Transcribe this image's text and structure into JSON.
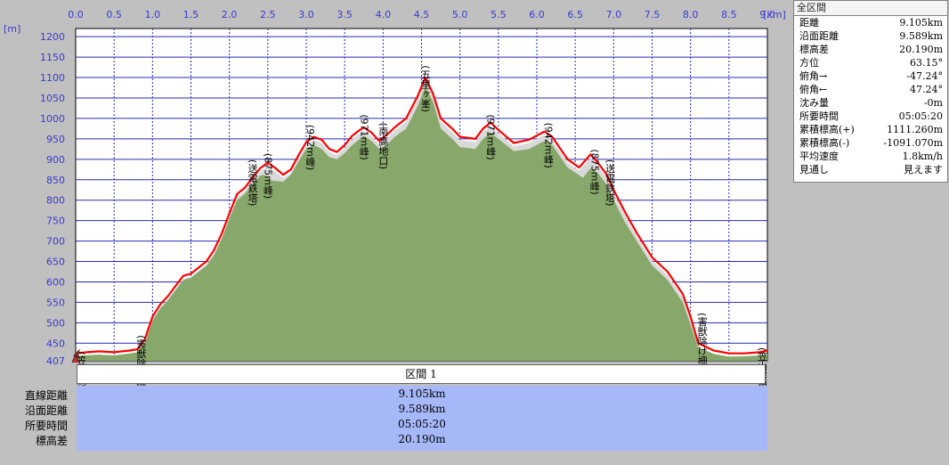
{
  "chart_data": {
    "type": "area",
    "x_unit": "[km]",
    "y_unit": "[m]",
    "xlim": [
      0,
      9.0
    ],
    "ylim": [
      407,
      1220
    ],
    "x_ticks": [
      "0.0",
      "0.5",
      "1.0",
      "1.5",
      "2.0",
      "2.5",
      "3.0",
      "3.5",
      "4.0",
      "4.5",
      "5.0",
      "5.5",
      "6.0",
      "6.5",
      "7.0",
      "7.5",
      "8.0",
      "8.5",
      "9.0"
    ],
    "y_ticks": [
      "1200",
      "1150",
      "1100",
      "1050",
      "1000",
      "950",
      "900",
      "850",
      "800",
      "750",
      "700",
      "650",
      "600",
      "550",
      "500",
      "450",
      "407"
    ],
    "grid": true,
    "profile": [
      [
        0.0,
        418
      ],
      [
        0.1,
        420
      ],
      [
        0.3,
        422
      ],
      [
        0.5,
        420
      ],
      [
        0.7,
        425
      ],
      [
        0.8,
        428
      ],
      [
        0.9,
        450
      ],
      [
        1.0,
        505
      ],
      [
        1.1,
        535
      ],
      [
        1.2,
        555
      ],
      [
        1.3,
        580
      ],
      [
        1.4,
        605
      ],
      [
        1.5,
        610
      ],
      [
        1.6,
        625
      ],
      [
        1.7,
        640
      ],
      [
        1.8,
        665
      ],
      [
        1.9,
        705
      ],
      [
        2.0,
        755
      ],
      [
        2.1,
        800
      ],
      [
        2.2,
        815
      ],
      [
        2.3,
        840
      ],
      [
        2.4,
        860
      ],
      [
        2.45,
        862
      ],
      [
        2.55,
        848
      ],
      [
        2.7,
        845
      ],
      [
        2.8,
        862
      ],
      [
        2.9,
        895
      ],
      [
        3.0,
        925
      ],
      [
        3.1,
        935
      ],
      [
        3.2,
        925
      ],
      [
        3.3,
        905
      ],
      [
        3.4,
        900
      ],
      [
        3.5,
        915
      ],
      [
        3.6,
        935
      ],
      [
        3.7,
        950
      ],
      [
        3.75,
        958
      ],
      [
        3.85,
        945
      ],
      [
        3.95,
        925
      ],
      [
        4.05,
        935
      ],
      [
        4.15,
        955
      ],
      [
        4.3,
        975
      ],
      [
        4.45,
        1030
      ],
      [
        4.55,
        1078
      ],
      [
        4.65,
        1040
      ],
      [
        4.75,
        975
      ],
      [
        4.9,
        950
      ],
      [
        5.0,
        930
      ],
      [
        5.2,
        925
      ],
      [
        5.3,
        950
      ],
      [
        5.4,
        965
      ],
      [
        5.5,
        950
      ],
      [
        5.7,
        920
      ],
      [
        5.9,
        925
      ],
      [
        6.0,
        935
      ],
      [
        6.1,
        945
      ],
      [
        6.2,
        935
      ],
      [
        6.4,
        880
      ],
      [
        6.6,
        855
      ],
      [
        6.7,
        878
      ],
      [
        6.8,
        865
      ],
      [
        6.9,
        840
      ],
      [
        7.0,
        800
      ],
      [
        7.15,
        745
      ],
      [
        7.3,
        700
      ],
      [
        7.5,
        640
      ],
      [
        7.7,
        605
      ],
      [
        7.9,
        550
      ],
      [
        8.0,
        495
      ],
      [
        8.1,
        440
      ],
      [
        8.3,
        424
      ],
      [
        8.5,
        417
      ],
      [
        8.7,
        418
      ],
      [
        8.9,
        420
      ],
      [
        9.0,
        422
      ]
    ],
    "route_line": [
      [
        0.0,
        425
      ],
      [
        0.15,
        428
      ],
      [
        0.3,
        430
      ],
      [
        0.5,
        428
      ],
      [
        0.7,
        432
      ],
      [
        0.8,
        435
      ],
      [
        0.9,
        460
      ],
      [
        1.0,
        515
      ],
      [
        1.1,
        545
      ],
      [
        1.2,
        565
      ],
      [
        1.3,
        590
      ],
      [
        1.4,
        615
      ],
      [
        1.5,
        620
      ],
      [
        1.6,
        635
      ],
      [
        1.7,
        650
      ],
      [
        1.8,
        678
      ],
      [
        1.9,
        718
      ],
      [
        2.0,
        768
      ],
      [
        2.1,
        815
      ],
      [
        2.2,
        830
      ],
      [
        2.3,
        855
      ],
      [
        2.4,
        878
      ],
      [
        2.45,
        885
      ],
      [
        2.5,
        892
      ],
      [
        2.6,
        878
      ],
      [
        2.7,
        862
      ],
      [
        2.8,
        875
      ],
      [
        2.9,
        910
      ],
      [
        3.0,
        942
      ],
      [
        3.1,
        955
      ],
      [
        3.2,
        948
      ],
      [
        3.3,
        925
      ],
      [
        3.4,
        918
      ],
      [
        3.5,
        935
      ],
      [
        3.6,
        958
      ],
      [
        3.7,
        972
      ],
      [
        3.75,
        978
      ],
      [
        3.85,
        965
      ],
      [
        3.95,
        945
      ],
      [
        4.05,
        960
      ],
      [
        4.15,
        978
      ],
      [
        4.3,
        1000
      ],
      [
        4.45,
        1055
      ],
      [
        4.55,
        1100
      ],
      [
        4.65,
        1060
      ],
      [
        4.75,
        1000
      ],
      [
        4.9,
        975
      ],
      [
        5.0,
        955
      ],
      [
        5.2,
        950
      ],
      [
        5.3,
        975
      ],
      [
        5.4,
        990
      ],
      [
        5.5,
        972
      ],
      [
        5.7,
        940
      ],
      [
        5.9,
        948
      ],
      [
        6.0,
        958
      ],
      [
        6.1,
        968
      ],
      [
        6.2,
        955
      ],
      [
        6.4,
        900
      ],
      [
        6.55,
        880
      ],
      [
        6.7,
        912
      ],
      [
        6.8,
        890
      ],
      [
        6.9,
        865
      ],
      [
        7.0,
        825
      ],
      [
        7.15,
        770
      ],
      [
        7.3,
        720
      ],
      [
        7.5,
        660
      ],
      [
        7.7,
        625
      ],
      [
        7.9,
        570
      ],
      [
        8.0,
        515
      ],
      [
        8.1,
        450
      ],
      [
        8.3,
        432
      ],
      [
        8.5,
        425
      ],
      [
        8.7,
        425
      ],
      [
        8.9,
        428
      ],
      [
        9.0,
        432
      ]
    ],
    "annotations": [
      {
        "x": 0.0,
        "y": 430,
        "text": "(笠山展望公園)"
      },
      {
        "x": 0.85,
        "y": 470,
        "text": "(害獣除け柵)"
      },
      {
        "x": 2.3,
        "y": 900,
        "text": "(送電鉄塔)"
      },
      {
        "x": 2.5,
        "y": 915,
        "text": "(875m峰)"
      },
      {
        "x": 3.05,
        "y": 985,
        "text": "(942m峰)"
      },
      {
        "x": 3.75,
        "y": 1010,
        "text": "(971m峰)"
      },
      {
        "x": 4.0,
        "y": 990,
        "text": "(南高地口)"
      },
      {
        "x": 4.55,
        "y": 1130,
        "text": "(五里ヶ峯)"
      },
      {
        "x": 5.4,
        "y": 1010,
        "text": "(971m峰)"
      },
      {
        "x": 6.15,
        "y": 990,
        "text": "(942m峰)"
      },
      {
        "x": 6.75,
        "y": 925,
        "text": "(875m峰)"
      },
      {
        "x": 6.95,
        "y": 900,
        "text": "(送電鉄塔)"
      },
      {
        "x": 8.15,
        "y": 525,
        "text": "(害獣除け柵)"
      },
      {
        "x": 8.95,
        "y": 440,
        "text": "(笠山展望公園)"
      }
    ],
    "colors": {
      "fill": "#87a86a",
      "halo": "#d9d9d9",
      "line": "#ff0000",
      "plot_bg": "#ffffff",
      "grid": "#2a2ab4",
      "axis_text": "#3a3ad0"
    }
  },
  "summary": {
    "title": "全区間",
    "rows": [
      {
        "label": "距離",
        "value": "9.105km"
      },
      {
        "label": "沿面距離",
        "value": "9.589km"
      },
      {
        "label": "標高差",
        "value": "20.190m"
      },
      {
        "label": "方位",
        "value": "63.15°"
      },
      {
        "label": "俯角→",
        "value": "-47.24°"
      },
      {
        "label": "俯角←",
        "value": "47.24°"
      },
      {
        "label": "沈み量",
        "value": "-0m"
      },
      {
        "label": "所要時間",
        "value": "05:05:20"
      },
      {
        "label": "累積標高(+)",
        "value": "1111.260m"
      },
      {
        "label": "累積標高(-)",
        "value": "-1091.070m"
      },
      {
        "label": "平均速度",
        "value": "1.8km/h"
      },
      {
        "label": "見通し",
        "value": "見えます"
      }
    ]
  },
  "section": {
    "header": "区間 1",
    "rows": [
      {
        "label": "直線距離",
        "value": "9.105km"
      },
      {
        "label": "沿面距離",
        "value": "9.589km"
      },
      {
        "label": "所要時間",
        "value": "05:05:20"
      },
      {
        "label": "標高差",
        "value": "20.190m"
      }
    ]
  }
}
